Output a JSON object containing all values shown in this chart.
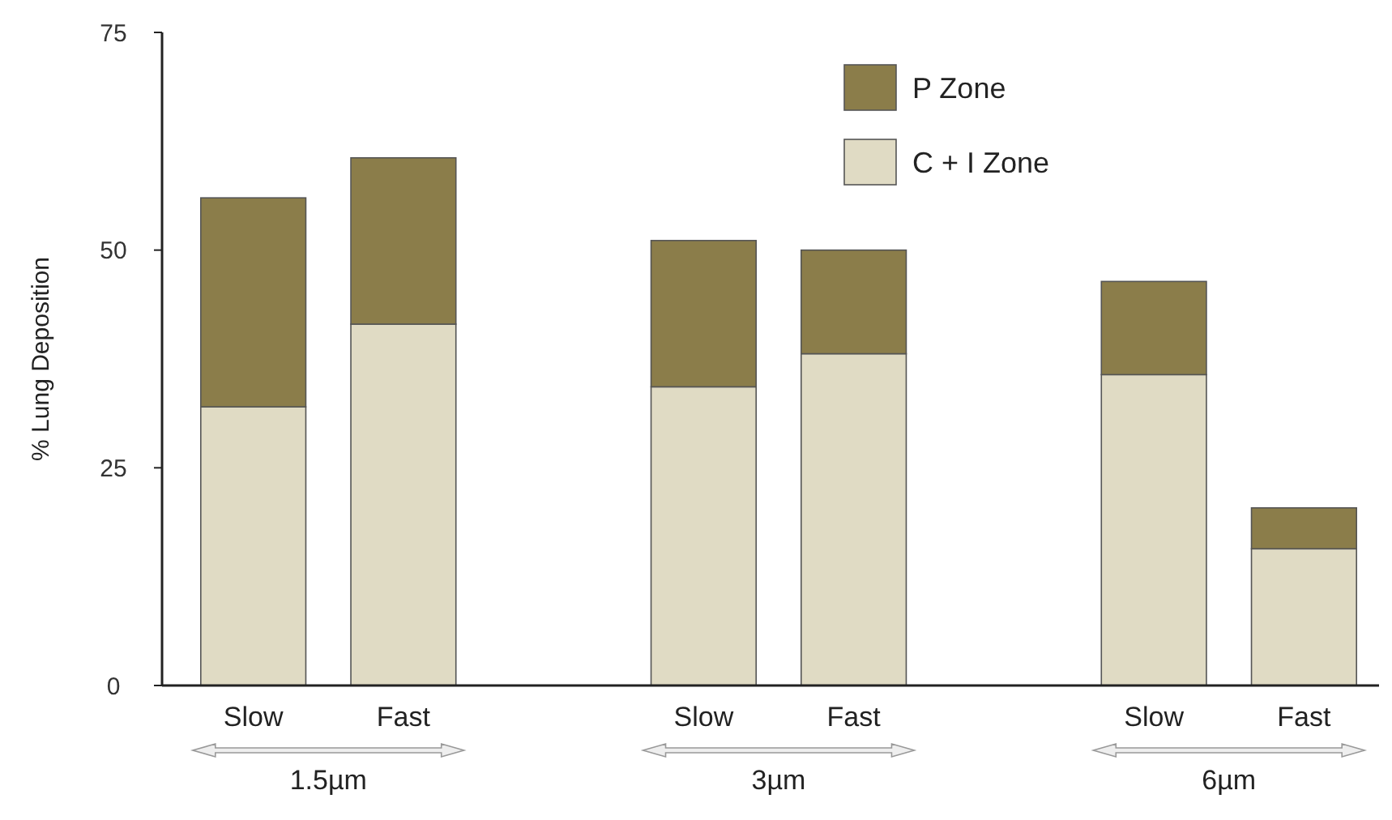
{
  "chart_data": {
    "type": "bar",
    "stacked": true,
    "ylabel": "% Lung Deposition",
    "categories": [
      "Slow",
      "Fast",
      null,
      "Slow",
      "Fast",
      null,
      "Slow",
      "Fast"
    ],
    "series": [
      {
        "name": "C + I Zone",
        "color": "#e0dbc4",
        "values": [
          32,
          41.5,
          null,
          34.3,
          38.1,
          null,
          35.7,
          15.7
        ]
      },
      {
        "name": "P Zone",
        "color": "#8b7d4a",
        "values": [
          24,
          19.1,
          null,
          16.8,
          11.9,
          null,
          10.7,
          4.7
        ]
      }
    ],
    "ylim": [
      0,
      75
    ],
    "yticks": [
      0,
      25,
      50,
      75
    ],
    "grid": false,
    "legend": "top right",
    "annotations": [
      "1.5µm",
      "3µm",
      "6µm"
    ]
  }
}
